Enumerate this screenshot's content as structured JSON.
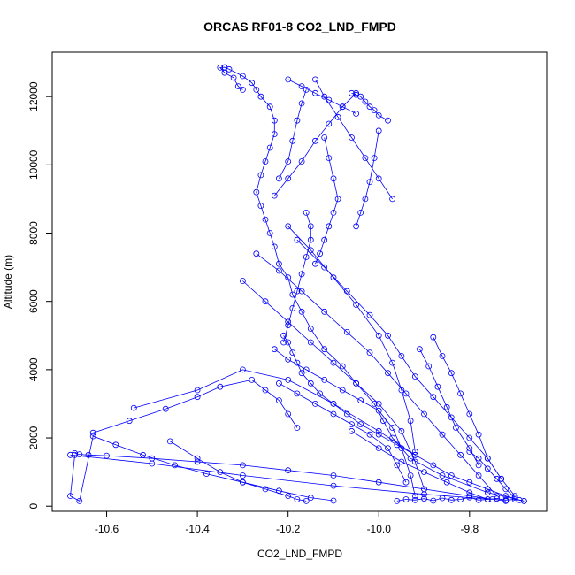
{
  "chart_data": {
    "type": "line",
    "title": "ORCAS RF01-8 CO2_LND_FMPD",
    "xlabel": "CO2_LND_FMPD",
    "ylabel": "Altitude (m)",
    "xlim": [
      -10.72,
      -9.63
    ],
    "ylim": [
      -150,
      13300
    ],
    "xticks": [
      "-10.6",
      "-10.4",
      "-10.2",
      "-10.0",
      "-9.8"
    ],
    "yticks": [
      "0",
      "2000",
      "4000",
      "6000",
      "8000",
      "10000",
      "12000"
    ],
    "grid": false,
    "legend": "none",
    "color": "#0000ff",
    "markers": "open-circle",
    "series": [
      {
        "x": [
          -9.68,
          -9.76,
          -9.86,
          -9.93,
          -9.97,
          -9.99,
          -10.01,
          -10.05,
          -10.08,
          -10.12,
          -10.15,
          -10.17,
          -10.19,
          -10.2,
          -10.22,
          -10.23,
          -10.24,
          -10.25,
          -10.26,
          -10.27,
          -10.26,
          -10.25,
          -10.24,
          -10.23,
          -10.23,
          -10.24,
          -10.26,
          -10.27,
          -10.28,
          -10.3,
          -10.33,
          -10.34,
          -10.34,
          -10.35,
          -10.34,
          -10.32,
          -10.31,
          -10.3
        ],
        "y": [
          150,
          400,
          900,
          1400,
          2000,
          2500,
          3000,
          3600,
          4100,
          4600,
          5200,
          5700,
          6200,
          6700,
          7100,
          7600,
          8000,
          8400,
          8800,
          9200,
          9700,
          10100,
          10500,
          10900,
          11300,
          11700,
          12000,
          12200,
          12400,
          12600,
          12800,
          12850,
          12860,
          12850,
          12700,
          12550,
          12300,
          12200
        ]
      },
      {
        "x": [
          -10.67,
          -10.66,
          -10.64,
          -10.6,
          -10.5,
          -10.4,
          -10.3,
          -10.2,
          -10.1,
          -10.0,
          -9.9,
          -9.8,
          -9.72
        ],
        "y": [
          1550,
          1520,
          1500,
          1480,
          1400,
          1300,
          1200,
          1050,
          900,
          700,
          500,
          300,
          150
        ]
      },
      {
        "x": [
          -10.67,
          -10.68,
          -10.66,
          -10.63,
          -10.58,
          -10.52,
          -10.45,
          -10.38,
          -10.3,
          -10.22,
          -10.15,
          -10.1
        ],
        "y": [
          1500,
          300,
          150,
          2050,
          1800,
          1500,
          1200,
          950,
          700,
          450,
          250,
          160
        ]
      },
      {
        "x": [
          -10.68,
          -10.5,
          -10.3,
          -10.1,
          -9.9,
          -9.75
        ],
        "y": [
          1500,
          1250,
          900,
          600,
          350,
          200
        ]
      },
      {
        "x": [
          -10.63,
          -10.55,
          -10.47,
          -10.4,
          -10.35,
          -10.28,
          -10.25,
          -10.22,
          -10.2,
          -10.18
        ],
        "y": [
          2150,
          2500,
          2850,
          3200,
          3500,
          3700,
          3400,
          3100,
          2700,
          2300
        ]
      },
      {
        "x": [
          -10.54,
          -10.4,
          -10.3,
          -10.2,
          -10.1,
          -10.0,
          -9.92
        ],
        "y": [
          2880,
          3400,
          4000,
          3700,
          3000,
          2200,
          1500
        ]
      },
      {
        "x": [
          -10.46,
          -10.4,
          -10.35,
          -10.3,
          -10.25,
          -10.2,
          -10.18,
          -10.16
        ],
        "y": [
          1900,
          1400,
          1000,
          700,
          500,
          300,
          200,
          150
        ]
      },
      {
        "x": [
          -10.2,
          -10.15,
          -10.1,
          -10.05,
          -10.0,
          -9.97,
          -9.95,
          -9.93,
          -9.92
        ],
        "y": [
          8200,
          7500,
          6700,
          5900,
          5000,
          4200,
          3400,
          2500,
          1600
        ]
      },
      {
        "x": [
          -10.18,
          -10.12,
          -10.07,
          -10.02,
          -9.98,
          -9.95,
          -9.92,
          -9.88,
          -9.84,
          -9.8,
          -9.76,
          -9.73,
          -9.7
        ],
        "y": [
          7800,
          7000,
          6300,
          5600,
          5000,
          4400,
          3800,
          3200,
          2600,
          2000,
          1400,
          800,
          300
        ]
      },
      {
        "x": [
          -10.06,
          -10.05,
          -10.04,
          -10.03,
          -10.02,
          -10.01,
          -10.0,
          -9.98
        ],
        "y": [
          12100,
          12050,
          12000,
          11850,
          11700,
          11600,
          11450,
          11300
        ]
      },
      {
        "x": [
          -10.0,
          -10.01,
          -10.02,
          -10.03,
          -10.04,
          -10.05
        ],
        "y": [
          11000,
          10200,
          9500,
          9000,
          8600,
          8200
        ]
      },
      {
        "x": [
          -10.05,
          -10.08,
          -10.11,
          -10.14,
          -10.17,
          -10.2,
          -10.23
        ],
        "y": [
          12100,
          11700,
          11200,
          10700,
          10100,
          9600,
          9100
        ]
      },
      {
        "x": [
          -10.12,
          -10.11,
          -10.1,
          -10.09,
          -10.1,
          -10.11,
          -10.12,
          -10.13,
          -10.14
        ],
        "y": [
          10800,
          10200,
          9600,
          9000,
          8600,
          8200,
          7800,
          7400,
          7100
        ]
      },
      {
        "x": [
          -10.16,
          -10.17,
          -10.18,
          -10.19,
          -10.2,
          -10.22
        ],
        "y": [
          12200,
          11800,
          11300,
          10700,
          10100,
          9600
        ]
      },
      {
        "x": [
          -10.16,
          -10.15,
          -10.15,
          -10.16,
          -10.17,
          -10.18,
          -10.19,
          -10.2,
          -10.21
        ],
        "y": [
          8600,
          8200,
          7800,
          7300,
          6800,
          6300,
          5800,
          5300,
          4800
        ]
      },
      {
        "x": [
          -10.21,
          -10.2,
          -10.19,
          -10.18,
          -10.17,
          -10.15,
          -10.13,
          -10.1,
          -10.07,
          -10.04,
          -10.0,
          -9.96,
          -9.92,
          -9.88,
          -9.84,
          -9.8,
          -9.76,
          -9.72,
          -9.69
        ],
        "y": [
          5000,
          4800,
          4500,
          4200,
          3900,
          3600,
          3300,
          3000,
          2700,
          2400,
          2100,
          1800,
          1500,
          1200,
          900,
          700,
          500,
          300,
          180
        ]
      },
      {
        "x": [
          -10.22,
          -10.18,
          -10.14,
          -10.1,
          -10.06,
          -10.02,
          -9.98,
          -9.96,
          -9.94
        ],
        "y": [
          3600,
          3300,
          3000,
          2700,
          2400,
          2100,
          1700,
          1200,
          700
        ]
      },
      {
        "x": [
          -10.23,
          -10.2,
          -10.16,
          -10.12,
          -10.08,
          -10.04,
          -10.0,
          -9.97,
          -9.95,
          -9.93,
          -9.92
        ],
        "y": [
          4600,
          4300,
          4000,
          3700,
          3400,
          3100,
          2800,
          2300,
          1700,
          900,
          300
        ]
      },
      {
        "x": [
          -9.88,
          -9.86,
          -9.84,
          -9.82,
          -9.8,
          -9.78,
          -9.76,
          -9.73
        ],
        "y": [
          4950,
          4400,
          3900,
          3300,
          2700,
          2100,
          1400,
          800
        ]
      },
      {
        "x": [
          -9.91,
          -9.89,
          -9.87,
          -9.85,
          -9.83,
          -9.8,
          -9.78
        ],
        "y": [
          4600,
          4100,
          3500,
          2900,
          2300,
          1700,
          1200
        ]
      },
      {
        "x": [
          -9.96,
          -9.94,
          -9.92,
          -9.9,
          -9.88,
          -9.86,
          -9.84,
          -9.82,
          -9.8,
          -9.78,
          -9.76,
          -9.74,
          -9.72,
          -9.7,
          -9.68
        ],
        "y": [
          150,
          200,
          180,
          220,
          160,
          240,
          180,
          200,
          260,
          180,
          200,
          220,
          180,
          200,
          150
        ]
      },
      {
        "x": [
          -10.3,
          -10.25,
          -10.2,
          -10.15,
          -10.1,
          -10.05,
          -10.0,
          -9.95,
          -9.92,
          -9.9
        ],
        "y": [
          6600,
          6000,
          5400,
          4800,
          4200,
          3600,
          3000,
          2200,
          1300,
          500
        ]
      },
      {
        "x": [
          -10.27,
          -10.22,
          -10.17,
          -10.12,
          -10.07,
          -10.02,
          -9.98,
          -9.94,
          -9.9,
          -9.86,
          -9.82,
          -9.78,
          -9.74
        ],
        "y": [
          7400,
          6900,
          6300,
          5700,
          5100,
          4500,
          3900,
          3300,
          2700,
          2100,
          1500,
          900,
          300
        ]
      },
      {
        "x": [
          -10.14,
          -10.12,
          -10.09,
          -10.06,
          -10.03,
          -10.0,
          -9.97
        ],
        "y": [
          12500,
          12000,
          11400,
          10800,
          10200,
          9600,
          9000
        ]
      },
      {
        "x": [
          -10.2,
          -10.17,
          -10.14,
          -10.11,
          -10.08,
          -10.05
        ],
        "y": [
          12500,
          12300,
          12100,
          11900,
          11700,
          11500
        ]
      },
      {
        "x": [
          -10.06,
          -10.0,
          -9.95,
          -9.9,
          -9.85,
          -9.8,
          -9.76
        ],
        "y": [
          2200,
          1700,
          1300,
          1000,
          700,
          400,
          200
        ]
      },
      {
        "x": [
          -9.8,
          -9.78,
          -9.76,
          -9.74,
          -9.72,
          -9.7
        ],
        "y": [
          1600,
          1400,
          1100,
          800,
          500,
          250
        ]
      }
    ]
  }
}
